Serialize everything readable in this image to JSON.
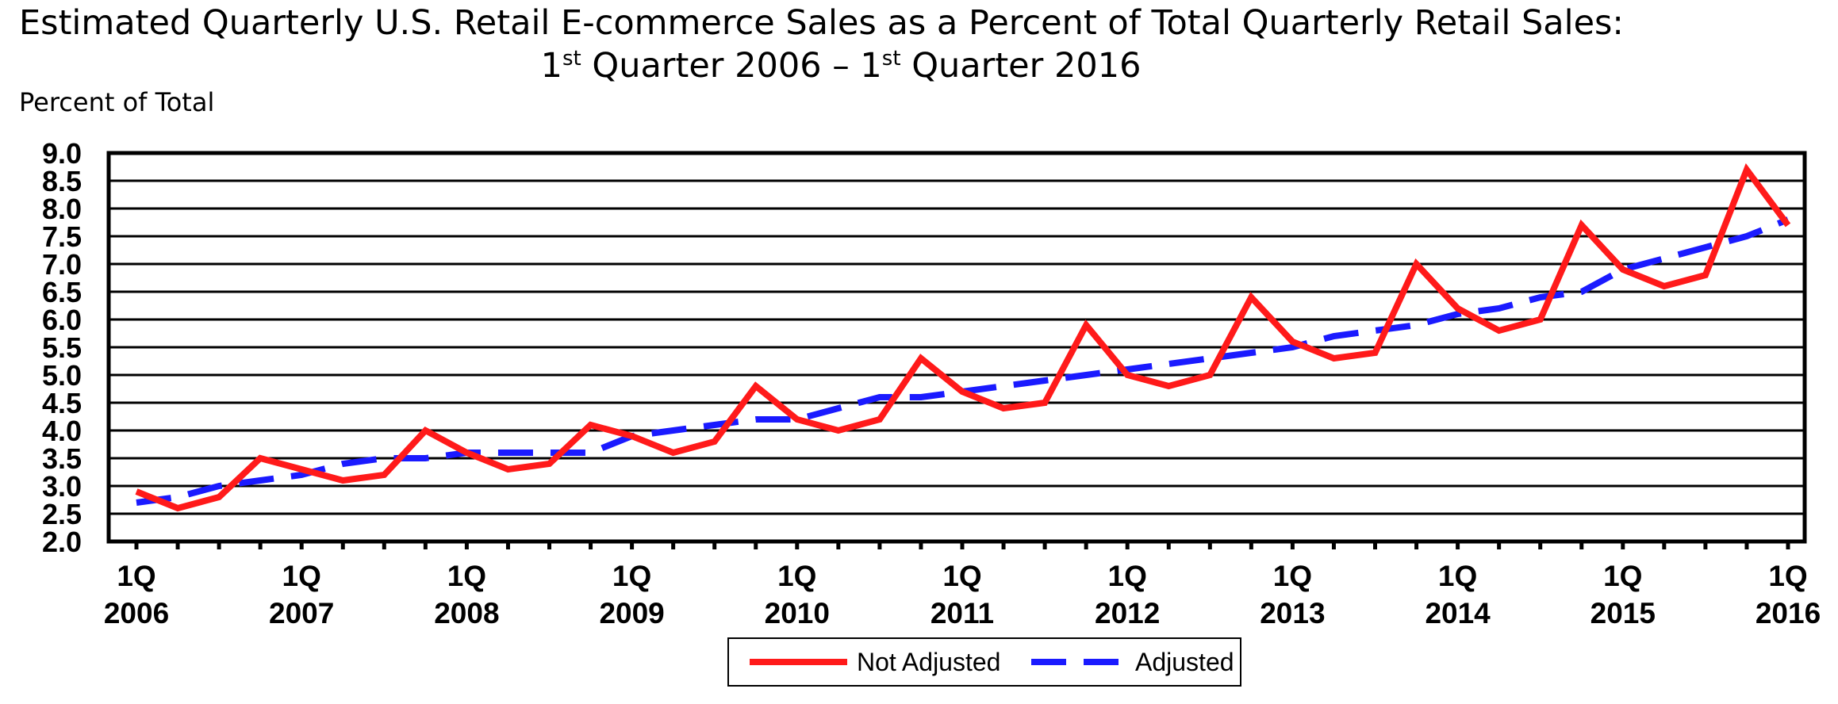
{
  "title": {
    "line1": "Estimated Quarterly U.S. Retail E-commerce Sales as a Percent of Total Quarterly Retail Sales:",
    "line2_pre": "1",
    "line2_sup1": "st",
    "line2_mid": " Quarter 2006 – 1",
    "line2_sup2": "st",
    "line2_post": " Quarter 2016"
  },
  "colors": {
    "not_adjusted": "#ff1a1a",
    "adjusted": "#1a1aff",
    "grid": "#000000"
  },
  "chart_data": {
    "type": "line",
    "title": "Estimated Quarterly U.S. Retail E-commerce Sales as a Percent of Total Quarterly Retail Sales: 1st Quarter 2006 – 1st Quarter 2016",
    "ylabel": "Percent of Total",
    "ylim": [
      2.0,
      9.0
    ],
    "yticks": [
      "9.0",
      "8.5",
      "8.0",
      "7.5",
      "7.0",
      "6.5",
      "6.0",
      "5.5",
      "5.0",
      "4.5",
      "4.0",
      "3.5",
      "3.0",
      "2.5",
      "2.0"
    ],
    "xtick_labels": [
      [
        "1Q",
        "2006"
      ],
      [
        "1Q",
        "2007"
      ],
      [
        "1Q",
        "2008"
      ],
      [
        "1Q",
        "2009"
      ],
      [
        "1Q",
        "2010"
      ],
      [
        "1Q",
        "2011"
      ],
      [
        "1Q",
        "2012"
      ],
      [
        "1Q",
        "2013"
      ],
      [
        "1Q",
        "2014"
      ],
      [
        "1Q",
        "2015"
      ],
      [
        "1Q",
        "2016"
      ]
    ],
    "grid": true,
    "legend_position": "bottom-center",
    "x": [
      "1Q 2006",
      "2Q 2006",
      "3Q 2006",
      "4Q 2006",
      "1Q 2007",
      "2Q 2007",
      "3Q 2007",
      "4Q 2007",
      "1Q 2008",
      "2Q 2008",
      "3Q 2008",
      "4Q 2008",
      "1Q 2009",
      "2Q 2009",
      "3Q 2009",
      "4Q 2009",
      "1Q 2010",
      "2Q 2010",
      "3Q 2010",
      "4Q 2010",
      "1Q 2011",
      "2Q 2011",
      "3Q 2011",
      "4Q 2011",
      "1Q 2012",
      "2Q 2012",
      "3Q 2012",
      "4Q 2012",
      "1Q 2013",
      "2Q 2013",
      "3Q 2013",
      "4Q 2013",
      "1Q 2014",
      "2Q 2014",
      "3Q 2014",
      "4Q 2014",
      "1Q 2015",
      "2Q 2015",
      "3Q 2015",
      "4Q 2015",
      "1Q 2016"
    ],
    "series": [
      {
        "name": "Not Adjusted",
        "values": [
          2.9,
          2.6,
          2.8,
          3.5,
          3.3,
          3.1,
          3.2,
          4.0,
          3.6,
          3.3,
          3.4,
          4.1,
          3.9,
          3.6,
          3.8,
          4.8,
          4.2,
          4.0,
          4.2,
          5.3,
          4.7,
          4.4,
          4.5,
          5.9,
          5.0,
          4.8,
          5.0,
          6.4,
          5.6,
          5.3,
          5.4,
          7.0,
          6.2,
          5.8,
          6.0,
          7.7,
          6.9,
          6.6,
          6.8,
          8.7,
          7.7
        ]
      },
      {
        "name": "Adjusted",
        "values": [
          2.7,
          2.8,
          3.0,
          3.1,
          3.2,
          3.4,
          3.5,
          3.5,
          3.6,
          3.6,
          3.6,
          3.6,
          3.9,
          4.0,
          4.1,
          4.2,
          4.2,
          4.4,
          4.6,
          4.6,
          4.7,
          4.8,
          4.9,
          5.0,
          5.1,
          5.2,
          5.3,
          5.4,
          5.5,
          5.7,
          5.8,
          5.9,
          6.1,
          6.2,
          6.4,
          6.5,
          6.9,
          7.1,
          7.3,
          7.5,
          7.8
        ]
      }
    ]
  }
}
